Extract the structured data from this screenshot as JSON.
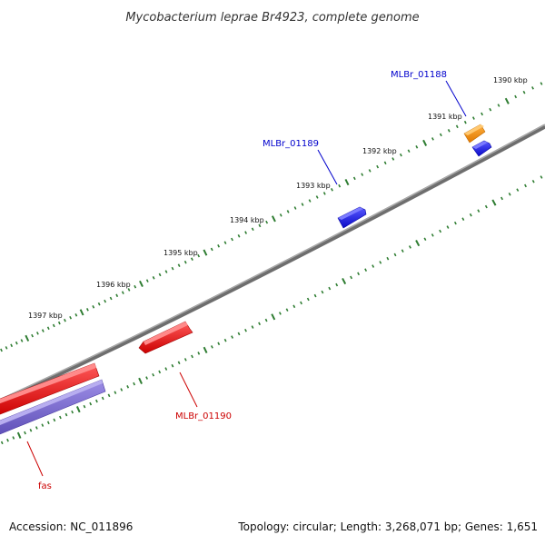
{
  "title": "Mycobacterium leprae Br4923, complete genome",
  "footer": {
    "accession": "Accession: NC_011896",
    "summary": "Topology: circular; Length: 3,268,071 bp; Genes: 1,651"
  },
  "ruler": {
    "labels": [
      "1390 kbp",
      "1391 kbp",
      "1392 kbp",
      "1393 kbp",
      "1394 kbp",
      "1395 kbp",
      "1396 kbp",
      "1397 kbp"
    ]
  },
  "genes": [
    {
      "name": "MLBr_01188",
      "label_color": "#0000cc"
    },
    {
      "name": "MLBr_01189",
      "label_color": "#0000cc"
    },
    {
      "name": "MLBr_01190",
      "label_color": "#cc0000"
    },
    {
      "name": "fas",
      "label_color": "#cc0000"
    }
  ],
  "colors": {
    "backbone": "#808080",
    "tick": "#2f7d32",
    "forward_blue": "#1a1aee",
    "orange": "#f0900a",
    "reverse_red": "#ee1a1a",
    "purple": "#7b68ce"
  }
}
